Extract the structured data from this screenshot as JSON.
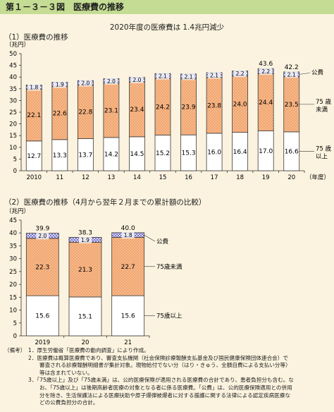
{
  "header": {
    "title": "第１－３－３図　医療費の推移"
  },
  "subtitle": "2020年度の医療費は 1.4兆円減少",
  "sections": {
    "s1": {
      "title": "（1）医療費の推移"
    },
    "s2": {
      "title": "（2）医療費の推移（4月から翌年２月までの累計額の比較）"
    }
  },
  "colors": {
    "elderly": "#ffffff",
    "under75": "#f6b98a",
    "public": "#9e9bd9",
    "frame": "#3a3a3a",
    "header_bg": "#c4dc93",
    "page_bg": "#fbf3df"
  },
  "chart_data": [
    {
      "type": "bar",
      "stacked": true,
      "ylabel": "（兆円）",
      "xlabel": "（年度）",
      "ylim": [
        0,
        50
      ],
      "yticks": [
        0,
        5,
        10,
        15,
        20,
        25,
        30,
        35,
        40,
        45,
        50
      ],
      "grid": false,
      "categories": [
        "2010",
        "11",
        "12",
        "13",
        "14",
        "15",
        "16",
        "17",
        "18",
        "19",
        "20"
      ],
      "series": [
        {
          "name": "75歳以上",
          "values": [
            12.7,
            13.3,
            13.7,
            14.2,
            14.5,
            15.2,
            15.3,
            16.0,
            16.4,
            17.0,
            16.6
          ]
        },
        {
          "name": "75歳未満",
          "values": [
            22.1,
            22.6,
            22.8,
            23.1,
            23.4,
            24.2,
            23.9,
            23.8,
            24.0,
            24.4,
            23.5
          ]
        },
        {
          "name": "公費",
          "values": [
            1.8,
            1.9,
            2.0,
            2.0,
            2.0,
            2.1,
            2.1,
            2.1,
            2.2,
            2.2,
            2.1
          ]
        }
      ],
      "totals": [
        null,
        null,
        null,
        null,
        null,
        null,
        null,
        null,
        null,
        43.6,
        42.2
      ],
      "legend_labels": [
        [
          "公費"
        ],
        [
          "75 歳",
          "未満"
        ],
        [
          "75 歳",
          "以上"
        ]
      ]
    },
    {
      "type": "bar",
      "stacked": true,
      "ylabel": "（兆円）",
      "ylim": [
        0,
        45
      ],
      "yticks": [
        0,
        5,
        10,
        15,
        20,
        25,
        30,
        35,
        40,
        45
      ],
      "grid": false,
      "categories": [
        "2019",
        "20",
        "21"
      ],
      "series": [
        {
          "name": "75歳以上",
          "values": [
            15.6,
            15.1,
            15.6
          ]
        },
        {
          "name": "75歳未満",
          "values": [
            22.3,
            21.3,
            22.7
          ]
        },
        {
          "name": "公費",
          "values": [
            2.0,
            1.9,
            1.8
          ]
        }
      ],
      "totals": [
        39.9,
        38.3,
        40.0
      ],
      "legend_labels": [
        "公費",
        "75歳未満",
        "75歳以上"
      ]
    }
  ],
  "notes": {
    "label": "（備考）",
    "items": [
      {
        "no": "1．",
        "lines": [
          "厚生労働省「医療費の動向調査」により作成。"
        ]
      },
      {
        "no": "2．",
        "lines": [
          "医療費は概算医療費であり、審査支払機関（社会保険診療報酬支払基金及び国民健康保険団体連合会）で",
          "審査される診療報酬明細書が集計対象。現物給付でない分（はり・きゅう、全額自費による支払い分等）",
          "等は含まれていない。"
        ]
      },
      {
        "no": "3．",
        "lines": [
          "「75歳以上」及び「75歳未満」は、公的医療保険が適用される医療費の合計であり、患者負担分も含む。な",
          "お、「75歳以上」は後期高齢者医療の対象となる者に係る医療費。「公費」は、公的医療保険適用との併用",
          "分を除き、生活保護法による医療扶助や原子爆弾被爆者に対する援護に関する法律による認定疾病医療な",
          "どの公費負担分の合計。"
        ]
      }
    ]
  }
}
